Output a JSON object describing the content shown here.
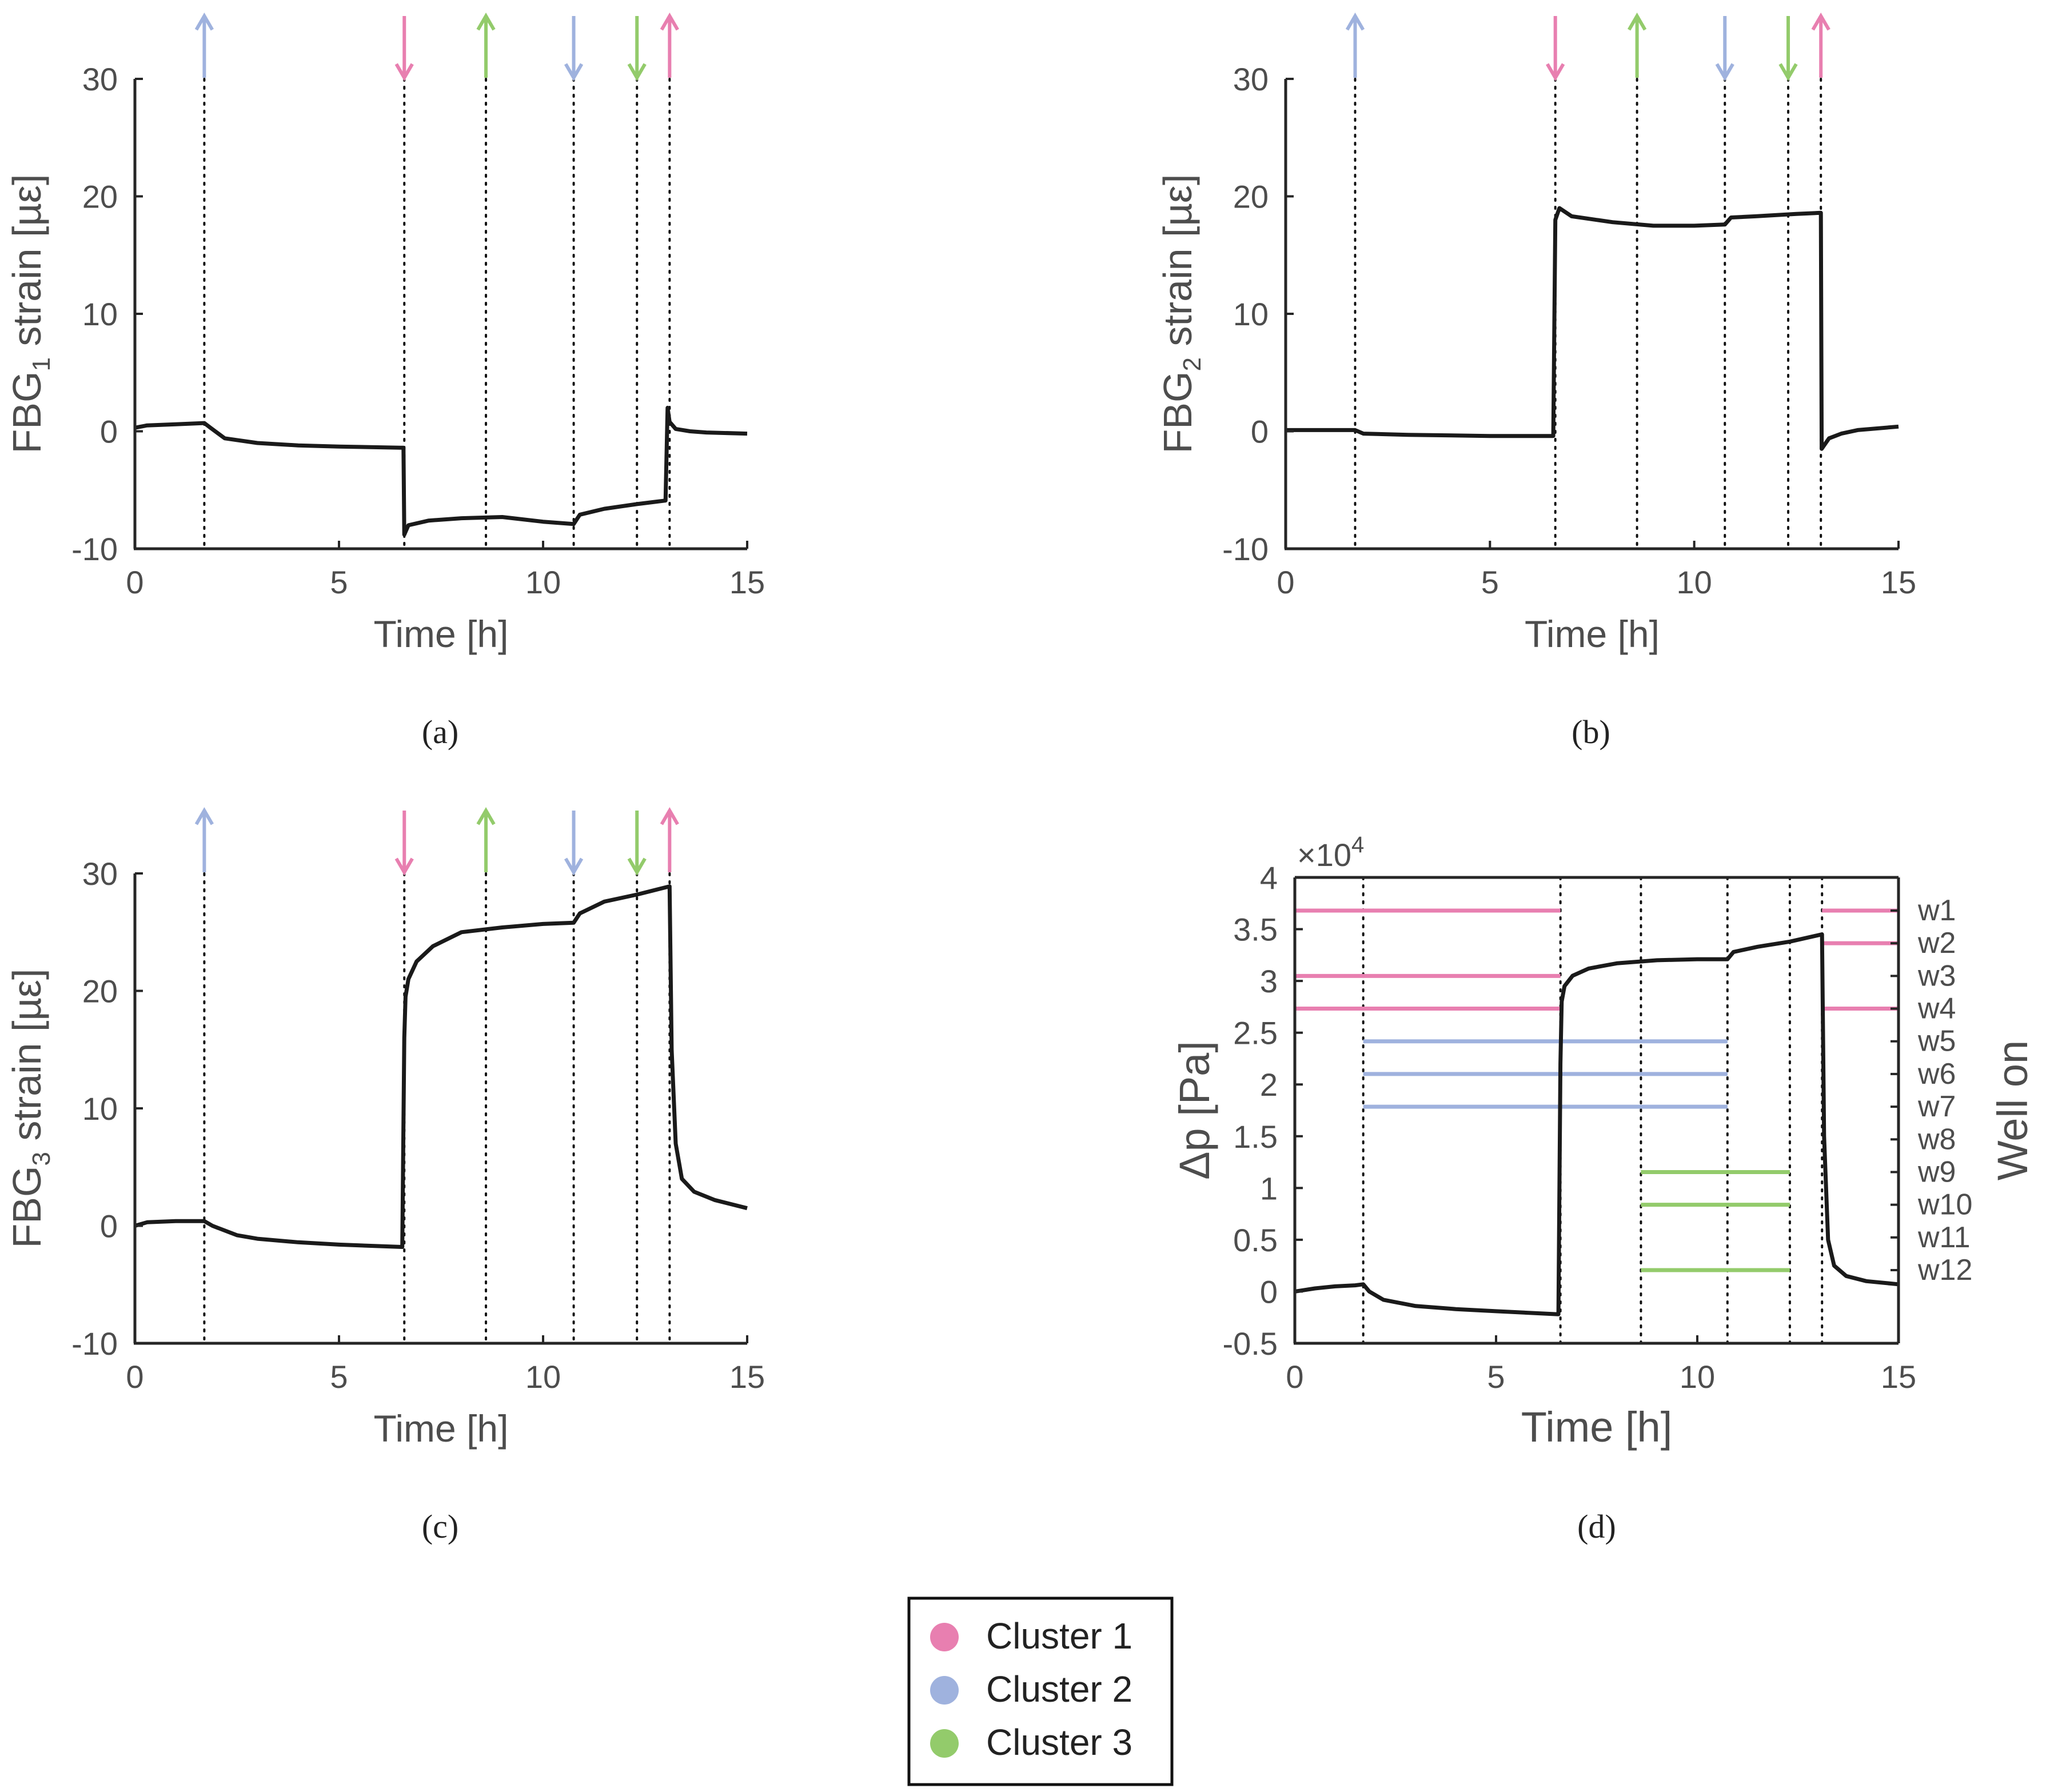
{
  "colors": {
    "cluster1": "#e87fb0",
    "cluster2": "#9fb2de",
    "cluster3": "#93cb6b",
    "line": "#1a1a1a",
    "axis": "#262626"
  },
  "events": [
    {
      "t": 1.7,
      "dir": "up",
      "cluster": "cluster2"
    },
    {
      "t": 6.6,
      "dir": "down",
      "cluster": "cluster1"
    },
    {
      "t": 8.6,
      "dir": "up",
      "cluster": "cluster3"
    },
    {
      "t": 10.75,
      "dir": "down",
      "cluster": "cluster2"
    },
    {
      "t": 12.3,
      "dir": "down",
      "cluster": "cluster3"
    },
    {
      "t": 13.1,
      "dir": "up",
      "cluster": "cluster1"
    }
  ],
  "legend": {
    "items": [
      {
        "label": "Cluster 1",
        "color": "#e87fb0"
      },
      {
        "label": "Cluster 2",
        "color": "#9fb2de"
      },
      {
        "label": "Cluster 3",
        "color": "#93cb6b"
      }
    ]
  },
  "chart_data": [
    {
      "type": "line",
      "caption": "(a)",
      "xlabel": "Time [h]",
      "ylabel": {
        "pre": "FBG",
        "sub": "1",
        "post": " strain [µε]"
      },
      "xlim": [
        0,
        15
      ],
      "ylim": [
        -10,
        30
      ],
      "xticks": [
        "0",
        "5",
        "10",
        "15"
      ],
      "yticks": [
        "-10",
        "0",
        "10",
        "20",
        "30"
      ],
      "grid": false,
      "series": [
        {
          "x": [
            0,
            0.3,
            1.0,
            1.7,
            1.85,
            2.2,
            3,
            4,
            5,
            6.5,
            6.58,
            6.6,
            6.7,
            7.2,
            8,
            9,
            10,
            10.75,
            10.9,
            11.5,
            12.3,
            13.0,
            13.05,
            13.1,
            13.25,
            13.6,
            14,
            15
          ],
          "y": [
            0.3,
            0.5,
            0.6,
            0.7,
            0.3,
            -0.6,
            -1.0,
            -1.2,
            -1.3,
            -1.4,
            -1.4,
            -8.8,
            -8.0,
            -7.6,
            -7.4,
            -7.3,
            -7.7,
            -7.9,
            -7.1,
            -6.6,
            -6.2,
            -5.9,
            2.0,
            0.8,
            0.2,
            0.0,
            -0.1,
            -0.2
          ]
        }
      ]
    },
    {
      "type": "line",
      "caption": "(b)",
      "xlabel": "Time [h]",
      "ylabel": {
        "pre": "FBG",
        "sub": "2",
        "post": " strain [µε]"
      },
      "xlim": [
        0,
        15
      ],
      "ylim": [
        -10,
        30
      ],
      "xticks": [
        "0",
        "5",
        "10",
        "15"
      ],
      "yticks": [
        "-10",
        "0",
        "10",
        "20",
        "30"
      ],
      "grid": false,
      "series": [
        {
          "x": [
            0,
            1.0,
            1.7,
            1.9,
            3,
            5,
            6.55,
            6.6,
            6.7,
            7,
            8,
            9,
            10,
            10.75,
            10.9,
            11.5,
            12.5,
            13.1,
            13.12,
            13.3,
            13.6,
            14,
            15
          ],
          "y": [
            0.1,
            0.1,
            0.1,
            -0.2,
            -0.3,
            -0.4,
            -0.4,
            18.0,
            19.0,
            18.3,
            17.8,
            17.5,
            17.5,
            17.6,
            18.2,
            18.3,
            18.5,
            18.6,
            -1.5,
            -0.6,
            -0.2,
            0.1,
            0.4
          ]
        }
      ]
    },
    {
      "type": "line",
      "caption": "(c)",
      "xlabel": "Time [h]",
      "ylabel": {
        "pre": "FBG",
        "sub": "3",
        "post": " strain [µε]"
      },
      "xlim": [
        0,
        15
      ],
      "ylim": [
        -10,
        30
      ],
      "xticks": [
        "0",
        "5",
        "10",
        "15"
      ],
      "yticks": [
        "-10",
        "0",
        "10",
        "20",
        "30"
      ],
      "grid": false,
      "series": [
        {
          "x": [
            0,
            0.3,
            1.0,
            1.7,
            1.9,
            2.5,
            3,
            4,
            5,
            6.55,
            6.6,
            6.63,
            6.7,
            6.9,
            7.3,
            8,
            9,
            10,
            10.75,
            10.9,
            11.5,
            12.3,
            13.1,
            13.15,
            13.25,
            13.4,
            13.7,
            14.2,
            15
          ],
          "y": [
            0,
            0.3,
            0.4,
            0.4,
            0.0,
            -0.8,
            -1.1,
            -1.4,
            -1.6,
            -1.8,
            16.0,
            19.5,
            21.0,
            22.5,
            23.8,
            25.0,
            25.4,
            25.7,
            25.8,
            26.6,
            27.6,
            28.2,
            28.9,
            15.0,
            7.0,
            4.0,
            2.9,
            2.2,
            1.5
          ]
        }
      ]
    },
    {
      "type": "line",
      "caption": "(d)",
      "xlabel": "Time [h]",
      "ylabel": "Δp [Pa]",
      "y2label": "Well on",
      "exponent": {
        "base": "×10",
        "power": "4"
      },
      "xlim": [
        0,
        15
      ],
      "ylim": [
        -0.5,
        4
      ],
      "xticks": [
        "0",
        "5",
        "10",
        "15"
      ],
      "yticks": [
        "-0.5",
        "0",
        "0.5",
        "1",
        "1.5",
        "2",
        "2.5",
        "3",
        "3.5",
        "4"
      ],
      "wells": [
        "w1",
        "w2",
        "w3",
        "w4",
        "w5",
        "w6",
        "w7",
        "w8",
        "w9",
        "w10",
        "w11",
        "w12"
      ],
      "well_bars": [
        {
          "well": 1,
          "cluster": "cluster1",
          "segments": [
            [
              0,
              6.6
            ],
            [
              13.1,
              15
            ]
          ]
        },
        {
          "well": 2,
          "cluster": "cluster1",
          "segments": [
            [
              13.1,
              15
            ]
          ]
        },
        {
          "well": 3,
          "cluster": "cluster1",
          "segments": [
            [
              0,
              6.6
            ]
          ]
        },
        {
          "well": 4,
          "cluster": "cluster1",
          "segments": [
            [
              0,
              6.6
            ],
            [
              13.1,
              15
            ]
          ]
        },
        {
          "well": 5,
          "cluster": "cluster2",
          "segments": [
            [
              1.7,
              10.75
            ]
          ]
        },
        {
          "well": 6,
          "cluster": "cluster2",
          "segments": [
            [
              1.7,
              10.75
            ]
          ]
        },
        {
          "well": 7,
          "cluster": "cluster2",
          "segments": [
            [
              1.7,
              10.75
            ]
          ]
        },
        {
          "well": 9,
          "cluster": "cluster3",
          "segments": [
            [
              8.6,
              12.3
            ]
          ]
        },
        {
          "well": 10,
          "cluster": "cluster3",
          "segments": [
            [
              8.6,
              12.3
            ]
          ]
        },
        {
          "well": 12,
          "cluster": "cluster3",
          "segments": [
            [
              8.6,
              12.3
            ]
          ]
        }
      ],
      "grid": false,
      "series": [
        {
          "x": [
            0,
            0.5,
            1.0,
            1.5,
            1.7,
            1.85,
            2.2,
            3,
            4,
            5,
            6.55,
            6.6,
            6.63,
            6.7,
            6.9,
            7.3,
            8,
            9,
            10,
            10.75,
            10.9,
            11.5,
            12.3,
            13.1,
            13.15,
            13.25,
            13.4,
            13.7,
            14.2,
            15
          ],
          "y": [
            0.0,
            0.03,
            0.05,
            0.06,
            0.07,
            0.0,
            -0.08,
            -0.14,
            -0.17,
            -0.19,
            -0.22,
            2.2,
            2.8,
            2.95,
            3.05,
            3.12,
            3.17,
            3.2,
            3.21,
            3.21,
            3.28,
            3.33,
            3.38,
            3.45,
            1.5,
            0.5,
            0.25,
            0.15,
            0.1,
            0.07
          ]
        }
      ]
    }
  ]
}
